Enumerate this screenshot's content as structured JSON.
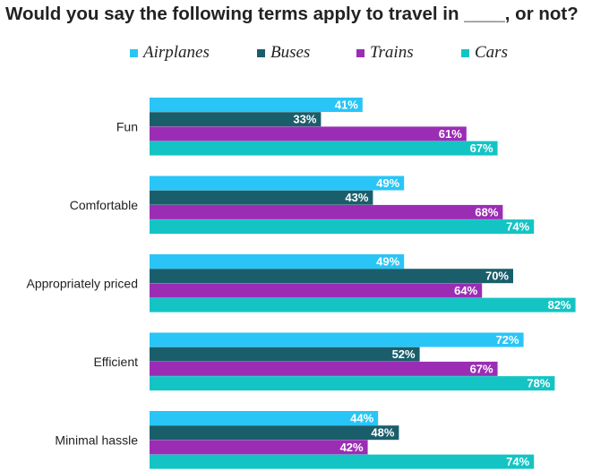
{
  "title": "Would you say the following terms apply to travel in ____, or not?",
  "chart_data": {
    "type": "bar",
    "orientation": "horizontal",
    "title": "Would you say the following terms apply to travel in ____, or not?",
    "categories": [
      "Fun",
      "Comfortable",
      "Appropriately priced",
      "Efficient",
      "Minimal hassle"
    ],
    "series": [
      {
        "name": "Airplanes",
        "color": "#29C5F6",
        "values": [
          41,
          49,
          49,
          72,
          44
        ],
        "labels": [
          "41%",
          "49%",
          "49%",
          "72%",
          "44%"
        ]
      },
      {
        "name": "Buses",
        "color": "#1B5E6B",
        "values": [
          33,
          43,
          70,
          52,
          48
        ],
        "labels": [
          "33%",
          "43%",
          "70%",
          "52%",
          "48%"
        ]
      },
      {
        "name": "Trains",
        "color": "#9B2DB5",
        "values": [
          61,
          68,
          64,
          67,
          42
        ],
        "labels": [
          "61%",
          "68%",
          "64%",
          "67%",
          "42%"
        ]
      },
      {
        "name": "Cars",
        "color": "#14C4C4",
        "values": [
          67,
          74,
          82,
          78,
          74
        ],
        "labels": [
          "67%",
          "74%",
          "82%",
          "78%",
          "74%"
        ]
      }
    ],
    "value_unit": "%",
    "xlim": [
      0,
      100
    ],
    "legend_position": "top",
    "grid": false,
    "axes_visible": false
  }
}
